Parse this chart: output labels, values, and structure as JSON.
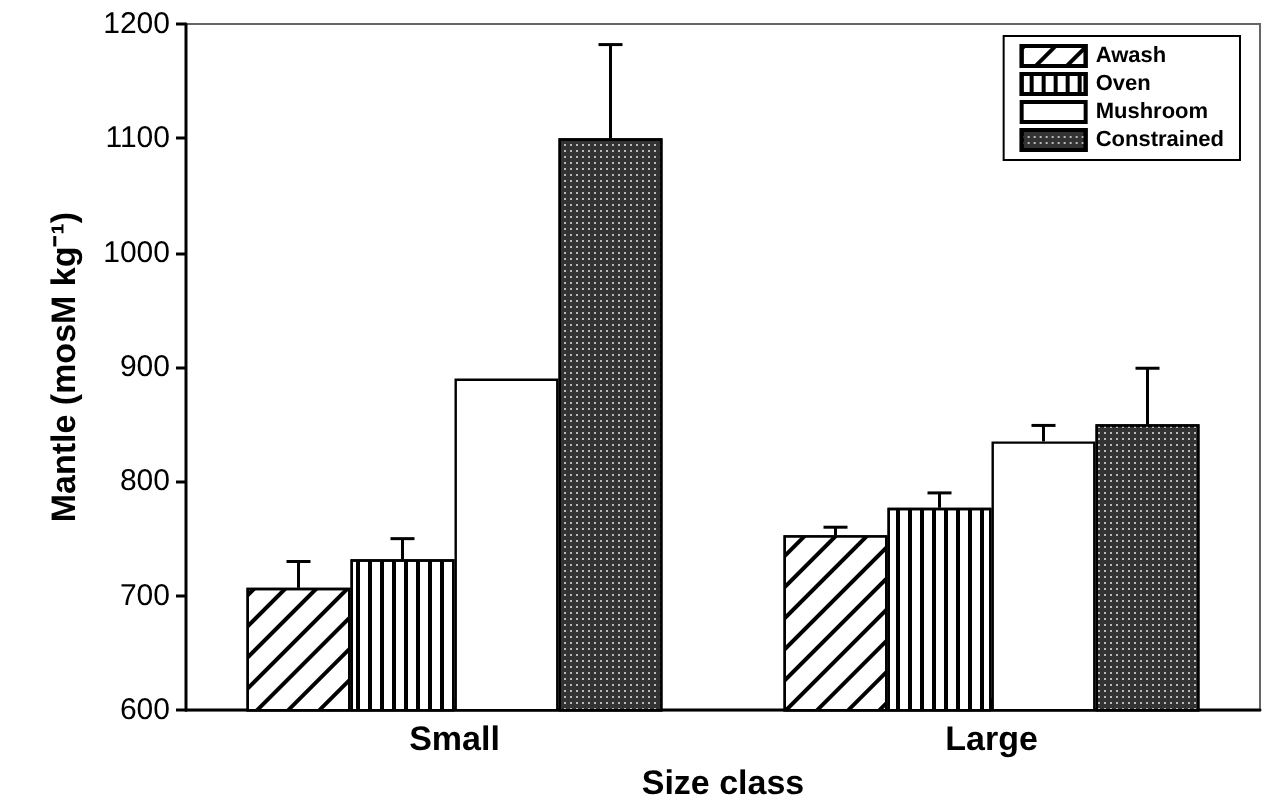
{
  "chart_data": {
    "type": "bar",
    "xlabel": "Size class",
    "ylabel": "Mantle (mosM kg⁻¹)",
    "categories": [
      "Small",
      "Large"
    ],
    "series": [
      {
        "name": "Awash",
        "color": "#ffffff",
        "values": [
          707,
          753
        ],
        "errors": [
          [
            707,
            730
          ],
          [
            753,
            760
          ]
        ]
      },
      {
        "name": "Oven",
        "color": "#ffffff",
        "values": [
          732,
          777
        ],
        "errors": [
          [
            732,
            750
          ],
          [
            777,
            790
          ]
        ]
      },
      {
        "name": "Mushroom",
        "color": "#ffffff",
        "values": [
          890,
          835
        ],
        "errors": [
          null,
          [
            835,
            849
          ]
        ]
      },
      {
        "name": "Constrained",
        "color": "#333333",
        "values": [
          1100,
          850
        ],
        "errors": [
          [
            1100,
            1182
          ],
          [
            850,
            899
          ]
        ]
      }
    ],
    "ylim": [
      600,
      1200
    ],
    "yticks": [
      600,
      700,
      800,
      900,
      1000,
      1100,
      1200
    ],
    "grid": false,
    "legend": "top right"
  }
}
